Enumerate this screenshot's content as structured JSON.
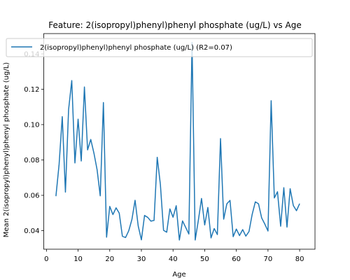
{
  "chart_data": {
    "type": "line",
    "title": "Feature: 2(isopropyl)phenyl)phenyl phosphate (ug/L) vs Age",
    "xlabel": "Age",
    "ylabel": "Mean 2(isopropyl)phenyl)phenyl phosphate (ug/L)",
    "xlim": [
      -0.85,
      84.85
    ],
    "ylim": [
      0.0295,
      0.1515
    ],
    "xticks": [
      0,
      10,
      20,
      30,
      40,
      50,
      60,
      70,
      80
    ],
    "yticks": [
      0.04,
      0.06,
      0.08,
      0.1,
      0.12,
      0.14
    ],
    "ytick_labels": [
      "0.04",
      "0.06",
      "0.08",
      "0.10",
      "0.12",
      "0.14"
    ],
    "legend_position": "top",
    "line_color": "#1f77b4",
    "series": [
      {
        "name": "2(isopropyl)phenyl)phenyl phosphate (ug/L) (R2=0.07)",
        "x": [
          3,
          4,
          5,
          6,
          7,
          8,
          9,
          10,
          11,
          12,
          13,
          14,
          15,
          16,
          17,
          18,
          19,
          20,
          21,
          22,
          23,
          24,
          25,
          26,
          27,
          28,
          29,
          30,
          31,
          32,
          33,
          34,
          35,
          36,
          37,
          38,
          39,
          40,
          41,
          42,
          43,
          44,
          45,
          46,
          47,
          48,
          49,
          50,
          51,
          52,
          53,
          54,
          55,
          56,
          57,
          58,
          59,
          60,
          61,
          62,
          63,
          64,
          65,
          66,
          67,
          68,
          69,
          70,
          71,
          72,
          73,
          74,
          75,
          76,
          77,
          78,
          79,
          80
        ],
        "y": [
          0.0595,
          0.0775,
          0.1045,
          0.0618,
          0.1085,
          0.1249,
          0.0783,
          0.1031,
          0.0794,
          0.1213,
          0.0857,
          0.0916,
          0.0839,
          0.0745,
          0.0597,
          0.1125,
          0.0363,
          0.0537,
          0.0491,
          0.0529,
          0.0499,
          0.0368,
          0.0361,
          0.0399,
          0.0463,
          0.0572,
          0.0426,
          0.0348,
          0.0486,
          0.0475,
          0.0454,
          0.0458,
          0.0815,
          0.0661,
          0.0402,
          0.0391,
          0.0523,
          0.0476,
          0.0541,
          0.0347,
          0.0455,
          0.0418,
          0.0381,
          0.1465,
          0.0347,
          0.0459,
          0.0582,
          0.0432,
          0.0531,
          0.0359,
          0.0412,
          0.0378,
          0.0921,
          0.0465,
          0.0552,
          0.0571,
          0.0366,
          0.0409,
          0.0372,
          0.0406,
          0.0369,
          0.0395,
          0.0492,
          0.0563,
          0.0552,
          0.0472,
          0.0437,
          0.0398,
          0.1135,
          0.0585,
          0.062,
          0.0425,
          0.0643,
          0.042,
          0.0637,
          0.0542,
          0.0513,
          0.0553
        ]
      }
    ]
  }
}
